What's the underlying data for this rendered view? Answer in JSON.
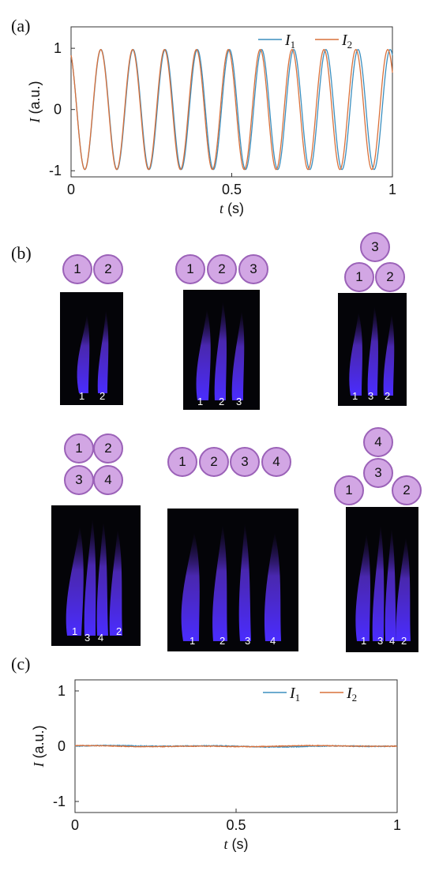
{
  "panels": {
    "a": {
      "label": "(a)",
      "chart_data": {
        "type": "line",
        "xlabel_italic": "t",
        "xlabel_unit": " (s)",
        "ylabel_italic": "I",
        "ylabel_unit": " (a.u.)",
        "xlim": [
          0,
          1
        ],
        "ylim": [
          -1.1,
          1.35
        ],
        "xticks": [
          0,
          0.5,
          1
        ],
        "xtick_labels": [
          "0",
          "0.5",
          "1"
        ],
        "yticks": [
          -1,
          0,
          1
        ],
        "ytick_labels": [
          "-1",
          "0",
          "1"
        ],
        "grid": false,
        "legend_position": "top-right",
        "frequency_hz": 10,
        "phase_lag_cycles": 0.03,
        "series": [
          {
            "name": "I",
            "sub": "1",
            "color": "#3b8fbf",
            "amplitude": 0.98
          },
          {
            "name": "I",
            "sub": "2",
            "color": "#d9703a",
            "amplitude": 0.98
          }
        ]
      }
    },
    "b": {
      "label": "(b)",
      "configs": [
        {
          "circles": [
            "1",
            "2"
          ],
          "flame_labels": [
            "1",
            "2"
          ]
        },
        {
          "circles": [
            "1",
            "2",
            "3"
          ],
          "flame_labels": [
            "1",
            "2",
            "3"
          ]
        },
        {
          "circles": [
            "3",
            "1",
            "2"
          ],
          "flame_labels": [
            "1",
            "3",
            "2"
          ]
        },
        {
          "circles": [
            "1",
            "2",
            "3",
            "4"
          ],
          "flame_labels": [
            "1",
            "3",
            "4",
            "2"
          ]
        },
        {
          "circles": [
            "1",
            "2",
            "3",
            "4"
          ],
          "flame_labels": [
            "1",
            "2",
            "3",
            "4"
          ]
        },
        {
          "circles": [
            "4",
            "3",
            "1",
            "2"
          ],
          "flame_labels": [
            "1",
            "3",
            "4",
            "2"
          ]
        }
      ]
    },
    "c": {
      "label": "(c)",
      "chart_data": {
        "type": "line",
        "xlabel_italic": "t",
        "xlabel_unit": " (s)",
        "ylabel_italic": "I",
        "ylabel_unit": " (a.u.)",
        "xlim": [
          0,
          1
        ],
        "ylim": [
          -1.2,
          1.2
        ],
        "xticks": [
          0,
          0.5,
          1
        ],
        "xtick_labels": [
          "0",
          "0.5",
          "1"
        ],
        "yticks": [
          -1,
          0,
          1
        ],
        "ytick_labels": [
          "-1",
          "0",
          "1"
        ],
        "grid": false,
        "legend_position": "top-right",
        "series": [
          {
            "name": "I",
            "sub": "1",
            "color": "#3b8fbf",
            "noise": 0.015
          },
          {
            "name": "I",
            "sub": "2",
            "color": "#d9703a",
            "noise": 0.012
          }
        ]
      }
    }
  }
}
